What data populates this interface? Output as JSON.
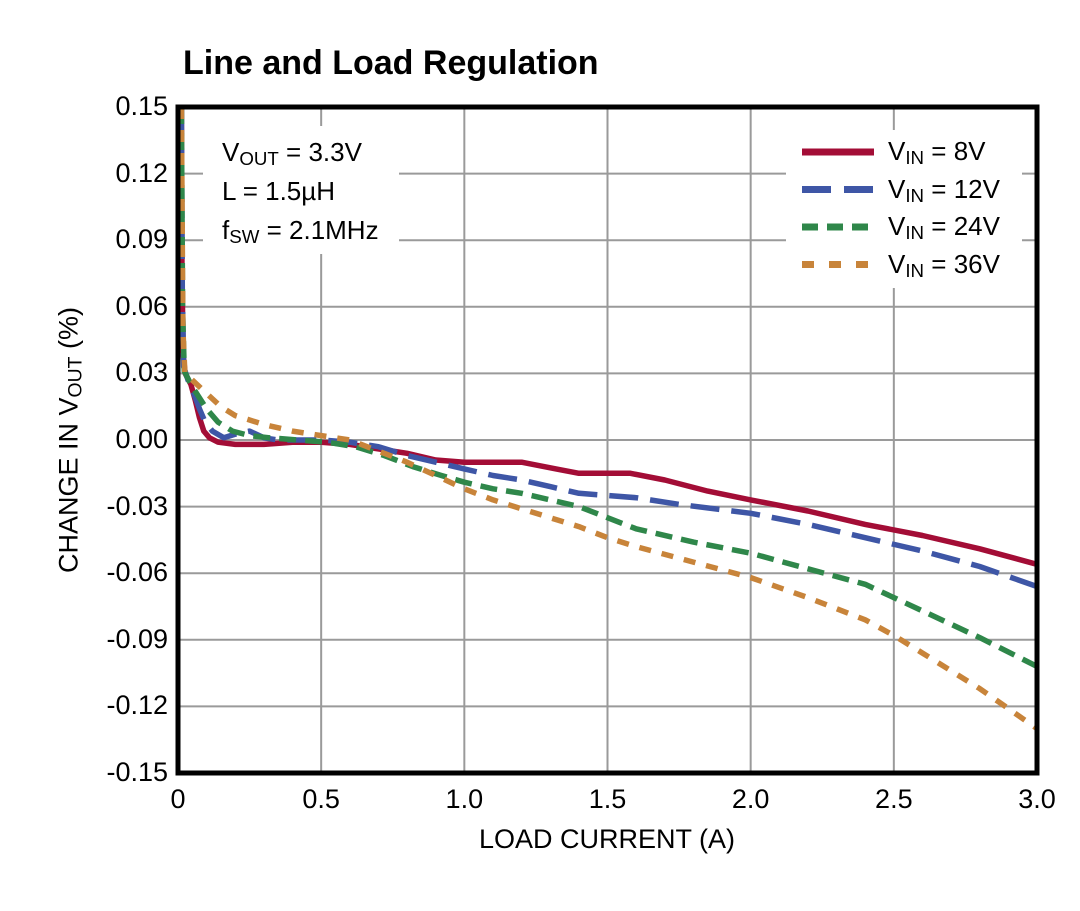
{
  "page": {
    "background": "#FFFFFF"
  },
  "title": "Line and Load Regulation",
  "annotation": {
    "lines": [
      {
        "pre": "V",
        "sub": "OUT",
        "post": " = 3.3V"
      },
      {
        "pre": "L = 1.5µH",
        "sub": "",
        "post": ""
      },
      {
        "pre": "f",
        "sub": "SW",
        "post": " = 2.1MHz"
      }
    ]
  },
  "axes": {
    "xlabel": "LOAD CURRENT (A)",
    "ylabel": {
      "pre": "CHANGE IN V",
      "sub": "OUT",
      "post": " (%)"
    }
  },
  "chart_data": {
    "type": "line",
    "title": "Line and Load Regulation",
    "xlabel": "LOAD CURRENT (A)",
    "ylabel": "CHANGE IN VOUT (%)",
    "xlim": [
      0,
      3
    ],
    "ylim": [
      -0.15,
      0.15
    ],
    "xticks": [
      "0",
      "0.5",
      "1.0",
      "1.5",
      "2.0",
      "2.5",
      "3.0"
    ],
    "yticks": [
      "0.15",
      "0.12",
      "0.09",
      "0.06",
      "0.03",
      "0.00",
      "-0.03",
      "-0.06",
      "-0.09",
      "-0.12",
      "-0.15"
    ],
    "grid": true,
    "grid_color": "#9A9A9A",
    "legend_position": "top-right",
    "series": [
      {
        "name": "VIN = 8V",
        "label": {
          "pre": "V",
          "sub": "IN",
          "post": " = 8V"
        },
        "color": "#A30D36",
        "dash": "",
        "legend_dash": "",
        "points": [
          [
            0.012,
            0.15
          ],
          [
            0.014,
            0.075
          ],
          [
            0.018,
            0.038
          ],
          [
            0.025,
            0.03
          ],
          [
            0.045,
            0.025
          ],
          [
            0.06,
            0.018
          ],
          [
            0.075,
            0.01
          ],
          [
            0.09,
            0.004
          ],
          [
            0.11,
            0.001
          ],
          [
            0.14,
            -0.001
          ],
          [
            0.2,
            -0.002
          ],
          [
            0.3,
            -0.002
          ],
          [
            0.4,
            -0.001
          ],
          [
            0.5,
            -0.001
          ],
          [
            0.6,
            -0.002
          ],
          [
            0.7,
            -0.004
          ],
          [
            0.8,
            -0.006
          ],
          [
            0.9,
            -0.009
          ],
          [
            1.0,
            -0.01
          ],
          [
            1.2,
            -0.01
          ],
          [
            1.32,
            -0.013
          ],
          [
            1.4,
            -0.015
          ],
          [
            1.58,
            -0.015
          ],
          [
            1.7,
            -0.018
          ],
          [
            1.85,
            -0.023
          ],
          [
            2.0,
            -0.027
          ],
          [
            2.2,
            -0.032
          ],
          [
            2.4,
            -0.038
          ],
          [
            2.6,
            -0.043
          ],
          [
            2.8,
            -0.049
          ],
          [
            3.0,
            -0.056
          ]
        ]
      },
      {
        "name": "VIN = 12V",
        "label": {
          "pre": "V",
          "sub": "IN",
          "post": " = 12V"
        },
        "color": "#3E56A6",
        "dash": "29 12",
        "legend_dash": "29 13",
        "points": [
          [
            0.012,
            0.15
          ],
          [
            0.015,
            0.068
          ],
          [
            0.02,
            0.033
          ],
          [
            0.035,
            0.027
          ],
          [
            0.055,
            0.021
          ],
          [
            0.075,
            0.014
          ],
          [
            0.095,
            0.008
          ],
          [
            0.12,
            0.004
          ],
          [
            0.16,
            0.001
          ],
          [
            0.21,
            0.003
          ],
          [
            0.25,
            0.004
          ],
          [
            0.3,
            0.001
          ],
          [
            0.35,
            0.0
          ],
          [
            0.5,
            0.0
          ],
          [
            0.6,
            -0.001
          ],
          [
            0.7,
            -0.003
          ],
          [
            0.8,
            -0.007
          ],
          [
            0.9,
            -0.01
          ],
          [
            1.0,
            -0.013
          ],
          [
            1.1,
            -0.016
          ],
          [
            1.2,
            -0.018
          ],
          [
            1.3,
            -0.021
          ],
          [
            1.4,
            -0.024
          ],
          [
            1.5,
            -0.025
          ],
          [
            1.6,
            -0.026
          ],
          [
            1.75,
            -0.029
          ],
          [
            2.0,
            -0.033
          ],
          [
            2.2,
            -0.038
          ],
          [
            2.4,
            -0.044
          ],
          [
            2.6,
            -0.05
          ],
          [
            2.8,
            -0.057
          ],
          [
            3.0,
            -0.066
          ]
        ]
      },
      {
        "name": "VIN = 24V",
        "label": {
          "pre": "V",
          "sub": "IN",
          "post": " = 24V"
        },
        "color": "#2F874A",
        "dash": "17 9",
        "legend_dash": "16 9",
        "points": [
          [
            0.012,
            0.15
          ],
          [
            0.016,
            0.058
          ],
          [
            0.022,
            0.031
          ],
          [
            0.045,
            0.025
          ],
          [
            0.07,
            0.02
          ],
          [
            0.1,
            0.014
          ],
          [
            0.14,
            0.008
          ],
          [
            0.19,
            0.004
          ],
          [
            0.25,
            0.002
          ],
          [
            0.32,
            0.001
          ],
          [
            0.42,
            0.0
          ],
          [
            0.52,
            -0.001
          ],
          [
            0.62,
            -0.003
          ],
          [
            0.72,
            -0.007
          ],
          [
            0.82,
            -0.012
          ],
          [
            0.92,
            -0.016
          ],
          [
            1.0,
            -0.019
          ],
          [
            1.1,
            -0.022
          ],
          [
            1.2,
            -0.024
          ],
          [
            1.3,
            -0.027
          ],
          [
            1.4,
            -0.03
          ],
          [
            1.5,
            -0.035
          ],
          [
            1.6,
            -0.04
          ],
          [
            1.8,
            -0.046
          ],
          [
            2.0,
            -0.051
          ],
          [
            2.2,
            -0.058
          ],
          [
            2.4,
            -0.065
          ],
          [
            2.5,
            -0.071
          ],
          [
            2.6,
            -0.077
          ],
          [
            2.8,
            -0.089
          ],
          [
            3.0,
            -0.102
          ]
        ]
      },
      {
        "name": "VIN = 36V",
        "label": {
          "pre": "V",
          "sub": "IN",
          "post": " = 36V"
        },
        "color": "#C8843A",
        "dash": "12 11",
        "legend_dash": "12 15",
        "points": [
          [
            0.012,
            0.15
          ],
          [
            0.017,
            0.05
          ],
          [
            0.024,
            0.03
          ],
          [
            0.05,
            0.027
          ],
          [
            0.1,
            0.021
          ],
          [
            0.15,
            0.015
          ],
          [
            0.2,
            0.011
          ],
          [
            0.25,
            0.009
          ],
          [
            0.3,
            0.007
          ],
          [
            0.4,
            0.004
          ],
          [
            0.5,
            0.002
          ],
          [
            0.6,
            0.0
          ],
          [
            0.7,
            -0.005
          ],
          [
            0.8,
            -0.01
          ],
          [
            0.9,
            -0.016
          ],
          [
            1.0,
            -0.022
          ],
          [
            1.1,
            -0.027
          ],
          [
            1.2,
            -0.031
          ],
          [
            1.3,
            -0.035
          ],
          [
            1.4,
            -0.039
          ],
          [
            1.5,
            -0.044
          ],
          [
            1.6,
            -0.048
          ],
          [
            1.8,
            -0.055
          ],
          [
            2.0,
            -0.062
          ],
          [
            2.2,
            -0.071
          ],
          [
            2.4,
            -0.081
          ],
          [
            2.5,
            -0.088
          ],
          [
            2.6,
            -0.096
          ],
          [
            2.8,
            -0.112
          ],
          [
            3.0,
            -0.13
          ]
        ]
      }
    ]
  }
}
